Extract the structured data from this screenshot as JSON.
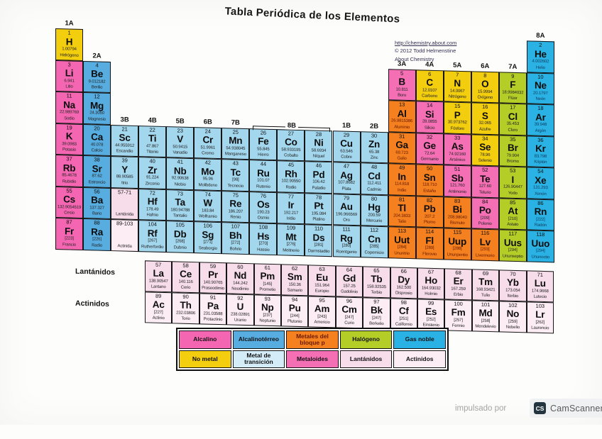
{
  "title": "Tabla Periódica de los Elementos",
  "credits": {
    "url": "http://chemistry.about.com",
    "copyright": "© 2012 Todd Helmenstine",
    "brand": "About Chemistry"
  },
  "row_labels": {
    "lanthanides": "Lantánidos",
    "actinides": "Actinidos"
  },
  "categories": {
    "alcalino": {
      "label": "Alcalino",
      "color": "#f466b1"
    },
    "alcalinoterreo": {
      "label": "Alcalinotérreo",
      "color": "#57ace0"
    },
    "bloque-p": {
      "label": "Metales del bloque p",
      "color": "#f48020",
      "label_color": "#6b1a00"
    },
    "halogeno": {
      "label": "Halógeno",
      "color": "#b5ce27"
    },
    "gas-noble": {
      "label": "Gas noble",
      "color": "#29b2e3"
    },
    "no-metal": {
      "label": "No metal",
      "color": "#f3ce0e"
    },
    "transicion": {
      "label": "Metal de transición",
      "color": "#a3d7ee",
      "legend_color": "#d4ecf7"
    },
    "metaloide": {
      "label": "Metaloides",
      "color": "#f56fb5"
    },
    "lantanido": {
      "label": "Lantánidos",
      "color": "#f7dcea"
    },
    "actinido": {
      "label": "Actinidos",
      "color": "#fcecf4"
    }
  },
  "legend": {
    "order": [
      "alcalino",
      "alcalinoterreo",
      "bloque-p",
      "halogeno",
      "gas-noble",
      "no-metal",
      "transicion",
      "metaloide",
      "lantanido",
      "actinido"
    ]
  },
  "group_labels": [
    {
      "label": "1A",
      "col": 1,
      "row": 1
    },
    {
      "label": "2A",
      "col": 2,
      "row": 2
    },
    {
      "label": "3B",
      "col": 3,
      "row": 4
    },
    {
      "label": "4B",
      "col": 4,
      "row": 4
    },
    {
      "label": "5B",
      "col": 5,
      "row": 4
    },
    {
      "label": "6B",
      "col": 6,
      "row": 4
    },
    {
      "label": "7B",
      "col": 7,
      "row": 4
    },
    {
      "label": "8B",
      "col": 8,
      "row": 4,
      "span": 3,
      "bracket": true
    },
    {
      "label": "1B",
      "col": 11,
      "row": 4
    },
    {
      "label": "2B",
      "col": 12,
      "row": 4
    },
    {
      "label": "3A",
      "col": 13,
      "row": 2
    },
    {
      "label": "4A",
      "col": 14,
      "row": 2
    },
    {
      "label": "5A",
      "col": 15,
      "row": 2
    },
    {
      "label": "6A",
      "col": 16,
      "row": 2
    },
    {
      "label": "7A",
      "col": 17,
      "row": 2
    },
    {
      "label": "8A",
      "col": 18,
      "row": 1
    }
  ],
  "placeholders": [
    {
      "range": "57-71",
      "label": "Lantánida",
      "period": 6,
      "col": 3,
      "cat": "lantanido"
    },
    {
      "range": "89-103",
      "label": "Actinida",
      "period": 7,
      "col": 3,
      "cat": "actinido"
    }
  ],
  "elements": [
    [
      1,
      "H",
      "1.00794",
      "Hidrógeno",
      1,
      1,
      "no-metal"
    ],
    [
      2,
      "He",
      "4.002602",
      "Helio",
      1,
      18,
      "gas-noble"
    ],
    [
      3,
      "Li",
      "6.941",
      "Litio",
      2,
      1,
      "alcalino"
    ],
    [
      4,
      "Be",
      "9.012182",
      "Berilio",
      2,
      2,
      "alcalinoterreo"
    ],
    [
      5,
      "B",
      "10.811",
      "Boro",
      2,
      13,
      "metaloide"
    ],
    [
      6,
      "C",
      "12.0107",
      "Carbono",
      2,
      14,
      "no-metal"
    ],
    [
      7,
      "N",
      "14.0067",
      "Nitrógeno",
      2,
      15,
      "no-metal"
    ],
    [
      8,
      "O",
      "15.9994",
      "Oxígeno",
      2,
      16,
      "no-metal"
    ],
    [
      9,
      "F",
      "18.9984032",
      "Flúor",
      2,
      17,
      "halogeno"
    ],
    [
      10,
      "Ne",
      "20.1797",
      "Neón",
      2,
      18,
      "gas-noble"
    ],
    [
      11,
      "Na",
      "22.989769",
      "Sodio",
      3,
      1,
      "alcalino"
    ],
    [
      12,
      "Mg",
      "24.3050",
      "Magnesio",
      3,
      2,
      "alcalinoterreo"
    ],
    [
      13,
      "Al",
      "26.9815386",
      "Aluminio",
      3,
      13,
      "bloque-p"
    ],
    [
      14,
      "Si",
      "28.0855",
      "Silicio",
      3,
      14,
      "metaloide"
    ],
    [
      15,
      "P",
      "30.973762",
      "Fósforo",
      3,
      15,
      "no-metal"
    ],
    [
      16,
      "S",
      "32.065",
      "Azufre",
      3,
      16,
      "no-metal"
    ],
    [
      17,
      "Cl",
      "35.453",
      "Cloro",
      3,
      17,
      "halogeno"
    ],
    [
      18,
      "Ar",
      "39.948",
      "Argón",
      3,
      18,
      "gas-noble"
    ],
    [
      19,
      "K",
      "39.0983",
      "Potasio",
      4,
      1,
      "alcalino"
    ],
    [
      20,
      "Ca",
      "40.078",
      "Calcio",
      4,
      2,
      "alcalinoterreo"
    ],
    [
      21,
      "Sc",
      "44.955912",
      "Escandio",
      4,
      3,
      "transicion"
    ],
    [
      22,
      "Ti",
      "47.867",
      "Titanio",
      4,
      4,
      "transicion"
    ],
    [
      23,
      "V",
      "50.9415",
      "Vanadio",
      4,
      5,
      "transicion"
    ],
    [
      24,
      "Cr",
      "51.9961",
      "Cromo",
      4,
      6,
      "transicion"
    ],
    [
      25,
      "Mn",
      "54.938045",
      "Manganeso",
      4,
      7,
      "transicion"
    ],
    [
      26,
      "Fe",
      "55.845",
      "Hierro",
      4,
      8,
      "transicion"
    ],
    [
      27,
      "Co",
      "58.933195",
      "Cobalto",
      4,
      9,
      "transicion"
    ],
    [
      28,
      "Ni",
      "58.6934",
      "Níquel",
      4,
      10,
      "transicion"
    ],
    [
      29,
      "Cu",
      "63.546",
      "Cobre",
      4,
      11,
      "transicion"
    ],
    [
      30,
      "Zn",
      "65.38",
      "Zinc",
      4,
      12,
      "transicion"
    ],
    [
      31,
      "Ga",
      "69.723",
      "Galio",
      4,
      13,
      "bloque-p"
    ],
    [
      32,
      "Ge",
      "72.64",
      "Germanio",
      4,
      14,
      "metaloide"
    ],
    [
      33,
      "As",
      "74.92160",
      "Arsénico",
      4,
      15,
      "metaloide"
    ],
    [
      34,
      "Se",
      "78.96",
      "Selenio",
      4,
      16,
      "no-metal"
    ],
    [
      35,
      "Br",
      "79.904",
      "Bromo",
      4,
      17,
      "halogeno"
    ],
    [
      36,
      "Kr",
      "83.798",
      "Kriptón",
      4,
      18,
      "gas-noble"
    ],
    [
      37,
      "Rb",
      "85.4678",
      "Rubidio",
      5,
      1,
      "alcalino"
    ],
    [
      38,
      "Sr",
      "87.62",
      "Estroncio",
      5,
      2,
      "alcalinoterreo"
    ],
    [
      39,
      "Y",
      "88.90585",
      "Itrio",
      5,
      3,
      "transicion"
    ],
    [
      40,
      "Zr",
      "91.224",
      "Zirconio",
      5,
      4,
      "transicion"
    ],
    [
      41,
      "Nb",
      "92.90638",
      "Niobio",
      5,
      5,
      "transicion"
    ],
    [
      42,
      "Mo",
      "95.96",
      "Molibdeno",
      5,
      6,
      "transicion"
    ],
    [
      43,
      "Tc",
      "[98]",
      "Tecnecio",
      5,
      7,
      "transicion"
    ],
    [
      44,
      "Ru",
      "101.07",
      "Rutenio",
      5,
      8,
      "transicion"
    ],
    [
      45,
      "Rh",
      "102.90550",
      "Rodio",
      5,
      9,
      "transicion"
    ],
    [
      46,
      "Pd",
      "106.42",
      "Paladio",
      5,
      10,
      "transicion"
    ],
    [
      47,
      "Ag",
      "107.8682",
      "Plata",
      5,
      11,
      "transicion"
    ],
    [
      48,
      "Cd",
      "112.411",
      "Cadmio",
      5,
      12,
      "transicion"
    ],
    [
      49,
      "In",
      "114.818",
      "Indio",
      5,
      13,
      "bloque-p"
    ],
    [
      50,
      "Sn",
      "118.710",
      "Estaño",
      5,
      14,
      "bloque-p"
    ],
    [
      51,
      "Sb",
      "121.760",
      "Antimonio",
      5,
      15,
      "metaloide"
    ],
    [
      52,
      "Te",
      "127.60",
      "Telurio",
      5,
      16,
      "metaloide"
    ],
    [
      53,
      "I",
      "126.90447",
      "Yodo",
      5,
      17,
      "halogeno"
    ],
    [
      54,
      "Xe",
      "131.293",
      "Xenón",
      5,
      18,
      "gas-noble"
    ],
    [
      55,
      "Cs",
      "132.9054519",
      "Cesio",
      6,
      1,
      "alcalino"
    ],
    [
      56,
      "Ba",
      "137.327",
      "Bario",
      6,
      2,
      "alcalinoterreo"
    ],
    [
      72,
      "Hf",
      "178.49",
      "Hafnio",
      6,
      4,
      "transicion"
    ],
    [
      73,
      "Ta",
      "180.94788",
      "Tantalio",
      6,
      5,
      "transicion"
    ],
    [
      74,
      "W",
      "183.84",
      "Wolframio",
      6,
      6,
      "transicion"
    ],
    [
      75,
      "Re",
      "186.207",
      "Renio",
      6,
      7,
      "transicion"
    ],
    [
      76,
      "Os",
      "190.23",
      "Osmio",
      6,
      8,
      "transicion"
    ],
    [
      77,
      "Ir",
      "192.217",
      "Iridio",
      6,
      9,
      "transicion"
    ],
    [
      78,
      "Pt",
      "195.084",
      "Platino",
      6,
      10,
      "transicion"
    ],
    [
      79,
      "Au",
      "196.966569",
      "Oro",
      6,
      11,
      "transicion"
    ],
    [
      80,
      "Hg",
      "200.59",
      "Mercurio",
      6,
      12,
      "transicion"
    ],
    [
      81,
      "Tl",
      "204.3833",
      "Talio",
      6,
      13,
      "bloque-p"
    ],
    [
      82,
      "Pb",
      "207.2",
      "Plomo",
      6,
      14,
      "bloque-p"
    ],
    [
      83,
      "Bi",
      "208.98040",
      "Bismuto",
      6,
      15,
      "bloque-p"
    ],
    [
      84,
      "Po",
      "[209]",
      "Polonio",
      6,
      16,
      "metaloide"
    ],
    [
      85,
      "At",
      "[210]",
      "Astato",
      6,
      17,
      "halogeno"
    ],
    [
      86,
      "Rn",
      "[222]",
      "Radón",
      6,
      18,
      "gas-noble"
    ],
    [
      87,
      "Fr",
      "[223]",
      "Francio",
      7,
      1,
      "alcalino"
    ],
    [
      88,
      "Ra",
      "[226]",
      "Radio",
      7,
      2,
      "alcalinoterreo"
    ],
    [
      104,
      "Rf",
      "[267]",
      "Rutherfordio",
      7,
      4,
      "transicion"
    ],
    [
      105,
      "Db",
      "[268]",
      "Dubnio",
      7,
      5,
      "transicion"
    ],
    [
      106,
      "Sg",
      "[271]",
      "Seaborgio",
      7,
      6,
      "transicion"
    ],
    [
      107,
      "Bh",
      "[272]",
      "Bohrio",
      7,
      7,
      "transicion"
    ],
    [
      108,
      "Hs",
      "[270]",
      "Hassio",
      7,
      8,
      "transicion"
    ],
    [
      109,
      "Mt",
      "[276]",
      "Meitnerio",
      7,
      9,
      "transicion"
    ],
    [
      110,
      "Ds",
      "[281]",
      "Darmstadtio",
      7,
      10,
      "transicion"
    ],
    [
      111,
      "Rg",
      "[280]",
      "Roentgenio",
      7,
      11,
      "transicion"
    ],
    [
      112,
      "Cn",
      "[285]",
      "Copernicio",
      7,
      12,
      "transicion"
    ],
    [
      113,
      "Uut",
      "[284]",
      "Ununtrio",
      7,
      13,
      "bloque-p"
    ],
    [
      114,
      "Fl",
      "[289]",
      "Flerovio",
      7,
      14,
      "bloque-p"
    ],
    [
      115,
      "Uup",
      "[288]",
      "Ununpentio",
      7,
      15,
      "bloque-p"
    ],
    [
      116,
      "Lv",
      "[293]",
      "Livermorio",
      7,
      16,
      "bloque-p"
    ],
    [
      117,
      "Uus",
      "[294]",
      "Ununseptio",
      7,
      17,
      "halogeno"
    ],
    [
      118,
      "Uuo",
      "[294]",
      "Ununoctio",
      7,
      18,
      "gas-noble"
    ],
    [
      57,
      "La",
      "138.90547",
      "Lantano",
      8,
      4,
      "lantanido"
    ],
    [
      58,
      "Ce",
      "140.116",
      "Cerio",
      8,
      5,
      "lantanido"
    ],
    [
      59,
      "Pr",
      "140.90765",
      "Praseodimio",
      8,
      6,
      "lantanido"
    ],
    [
      60,
      "Nd",
      "144.242",
      "Neodimio",
      8,
      7,
      "lantanido"
    ],
    [
      61,
      "Pm",
      "[145]",
      "Prometio",
      8,
      8,
      "lantanido"
    ],
    [
      62,
      "Sm",
      "150.36",
      "Samario",
      8,
      9,
      "lantanido"
    ],
    [
      63,
      "Eu",
      "151.964",
      "Europio",
      8,
      10,
      "lantanido"
    ],
    [
      64,
      "Gd",
      "157.25",
      "Gadolinio",
      8,
      11,
      "lantanido"
    ],
    [
      65,
      "Tb",
      "158.92535",
      "Terbio",
      8,
      12,
      "lantanido"
    ],
    [
      66,
      "Dy",
      "162.500",
      "Disprosio",
      8,
      13,
      "lantanido"
    ],
    [
      67,
      "Ho",
      "164.93032",
      "Holmio",
      8,
      14,
      "lantanido"
    ],
    [
      68,
      "Er",
      "167.259",
      "Erbio",
      8,
      15,
      "lantanido"
    ],
    [
      69,
      "Tm",
      "168.93421",
      "Tulio",
      8,
      16,
      "lantanido"
    ],
    [
      70,
      "Yb",
      "173.054",
      "Iterbio",
      8,
      17,
      "lantanido"
    ],
    [
      71,
      "Lu",
      "174.9668",
      "Lutecio",
      8,
      18,
      "lantanido"
    ],
    [
      89,
      "Ac",
      "[227]",
      "Actinio",
      9,
      4,
      "actinido"
    ],
    [
      90,
      "Th",
      "232.03806",
      "Torio",
      9,
      5,
      "actinido"
    ],
    [
      91,
      "Pa",
      "231.03588",
      "Protactinio",
      9,
      6,
      "actinido"
    ],
    [
      92,
      "U",
      "238.02891",
      "Uranio",
      9,
      7,
      "actinido"
    ],
    [
      93,
      "Np",
      "[237]",
      "Neptunio",
      9,
      8,
      "actinido"
    ],
    [
      94,
      "Pu",
      "[244]",
      "Plutonio",
      9,
      9,
      "actinido"
    ],
    [
      95,
      "Am",
      "[243]",
      "Americio",
      9,
      10,
      "actinido"
    ],
    [
      96,
      "Cm",
      "[247]",
      "Curio",
      9,
      11,
      "actinido"
    ],
    [
      97,
      "Bk",
      "[247]",
      "Berkelio",
      9,
      12,
      "actinido"
    ],
    [
      98,
      "Cf",
      "[251]",
      "Californio",
      9,
      13,
      "actinido"
    ],
    [
      99,
      "Es",
      "[252]",
      "Einstenio",
      9,
      14,
      "actinido"
    ],
    [
      100,
      "Fm",
      "[257]",
      "Fermio",
      9,
      15,
      "actinido"
    ],
    [
      101,
      "Md",
      "[258]",
      "Mendelevio",
      9,
      16,
      "actinido"
    ],
    [
      102,
      "No",
      "[259]",
      "Nobelio",
      9,
      17,
      "actinido"
    ],
    [
      103,
      "Lr",
      "[262]",
      "Laurencio",
      9,
      18,
      "actinido"
    ]
  ],
  "footer": {
    "powered_by": "impulsado por",
    "scanner_name": "CamScanner",
    "scanner_initials": "CS"
  }
}
